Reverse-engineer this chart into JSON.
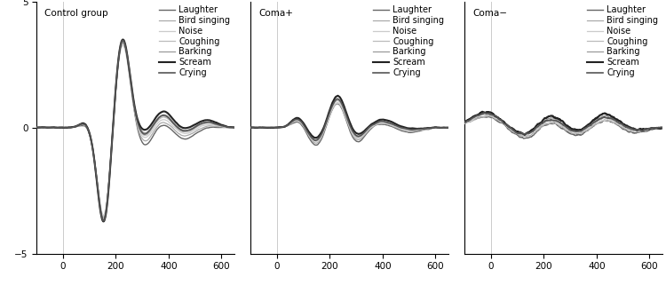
{
  "panels": [
    {
      "title": "Control group"
    },
    {
      "title": "Coma+"
    },
    {
      "title": "Coma−"
    }
  ],
  "legend_labels": [
    "Laughter",
    "Bird singing",
    "Noise",
    "Coughing",
    "Barking",
    "Scream",
    "Crying"
  ],
  "line_colors": [
    "#666666",
    "#aaaaaa",
    "#cccccc",
    "#bbbbbb",
    "#999999",
    "#222222",
    "#555555"
  ],
  "line_widths": [
    1.0,
    0.9,
    0.9,
    0.9,
    0.9,
    1.5,
    1.2
  ],
  "xlim": [
    -100,
    650
  ],
  "ylim": [
    -5,
    5
  ],
  "xticks": [
    0,
    200,
    400,
    600
  ],
  "yticks": [
    -5,
    0,
    5
  ],
  "vline_x": 0,
  "background_color": "#ffffff",
  "fontsize": 7.5
}
